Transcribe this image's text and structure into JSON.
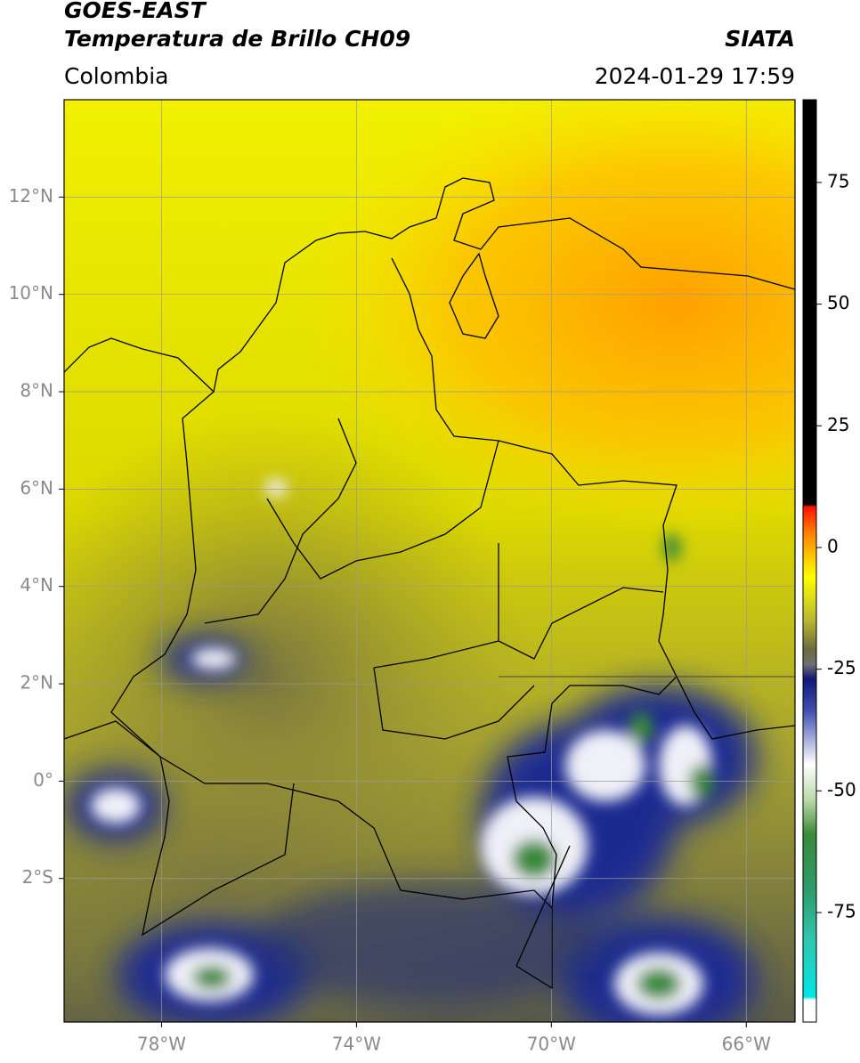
{
  "header": {
    "title": "GOES-EAST",
    "subtitle": "Temperatura de Brillo CH09",
    "source": "SIATA",
    "region": "Colombia",
    "timestamp": "2024-01-29 17:59"
  },
  "map": {
    "xlim": [
      -80,
      -65
    ],
    "ylim": [
      -4.95,
      14
    ],
    "xticks": [
      {
        "value": -78,
        "label": "78°W"
      },
      {
        "value": -74,
        "label": "74°W"
      },
      {
        "value": -70,
        "label": "70°W"
      },
      {
        "value": -66,
        "label": "66°W"
      }
    ],
    "yticks": [
      {
        "value": 12,
        "label": "12°N"
      },
      {
        "value": 10,
        "label": "10°N"
      },
      {
        "value": 8,
        "label": "8°N"
      },
      {
        "value": 6,
        "label": "6°N"
      },
      {
        "value": 4,
        "label": "4°N"
      },
      {
        "value": 2,
        "label": "2°N"
      },
      {
        "value": 0,
        "label": "0°"
      },
      {
        "value": -2,
        "label": "2°S"
      }
    ],
    "grid": true,
    "grid_color": "#999999"
  },
  "colorbar": {
    "lim": [
      -97.5,
      92
    ],
    "ticks": [
      -75,
      -50,
      -25,
      0,
      25,
      50,
      75
    ],
    "stops": [
      {
        "value": -97.5,
        "color": "#ffffff"
      },
      {
        "value": -93,
        "color": "#ffffff"
      },
      {
        "value": -92.3,
        "color": "#00e5e5"
      },
      {
        "value": -81,
        "color": "#30c8b0"
      },
      {
        "value": -70,
        "color": "#2e9a6a"
      },
      {
        "value": -59,
        "color": "#3a8a3a"
      },
      {
        "value": -52,
        "color": "#b8d8a8"
      },
      {
        "value": -44.5,
        "color": "#ffffff"
      },
      {
        "value": -33.6,
        "color": "#4050b0"
      },
      {
        "value": -27,
        "color": "#101878"
      },
      {
        "value": -24,
        "color": "#707070"
      },
      {
        "value": -21,
        "color": "#6a6a40"
      },
      {
        "value": -15,
        "color": "#b8b830"
      },
      {
        "value": -6,
        "color": "#ffff00"
      },
      {
        "value": -2.5,
        "color": "#ffd000"
      },
      {
        "value": 3,
        "color": "#ff8000"
      },
      {
        "value": 8.4,
        "color": "#ff1000"
      },
      {
        "value": 8.8,
        "color": "#000000"
      },
      {
        "value": 92,
        "color": "#000000"
      }
    ]
  }
}
